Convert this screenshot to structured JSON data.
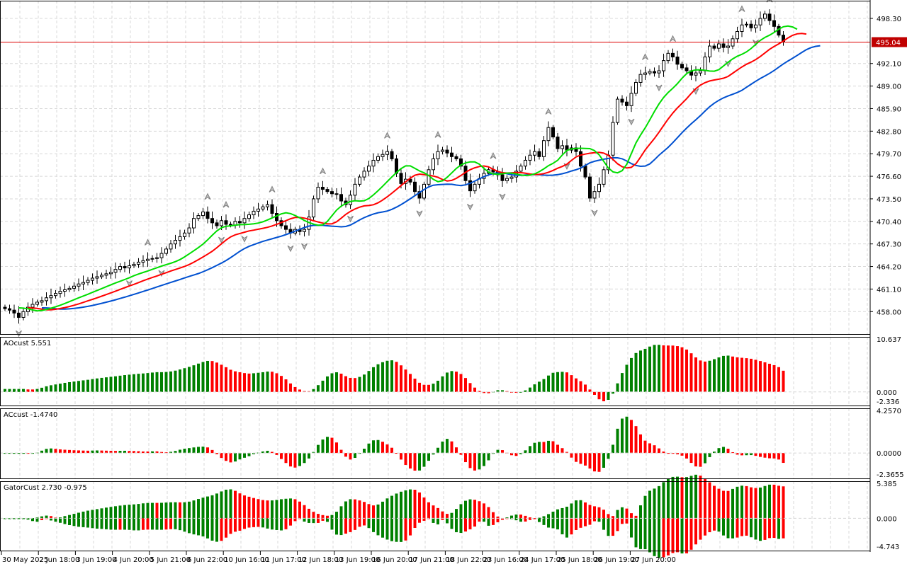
{
  "symbol_price_line": {
    "value": 495.04,
    "label": "495.04",
    "color": "#dd0000"
  },
  "colors": {
    "up": "#008000",
    "down": "#ff0000",
    "lips": "#00dd00",
    "teeth": "#ff0000",
    "jaw": "#0050d0",
    "grid": "#d8d8d8"
  },
  "chart_data": [
    {
      "type": "candlestick",
      "title": "",
      "price_ticks": [
        "498.30",
        "492.10",
        "489.00",
        "485.90",
        "482.80",
        "479.70",
        "476.60",
        "473.50",
        "470.40",
        "467.30",
        "464.20",
        "461.10",
        "458.00"
      ],
      "ylim": [
        456.7,
        500.6
      ],
      "time_ticks": [
        "30 May 2025",
        "2 Jun 18:00",
        "3 Jun 19:00",
        "4 Jun 20:00",
        "5 Jun 21:00",
        "6 Jun 22:00",
        "10 Jun 16:00",
        "11 Jun 17:00",
        "12 Jun 18:00",
        "13 Jun 19:00",
        "16 Jun 20:00",
        "17 Jun 21:00",
        "18 Jun 22:00",
        "23 Jun 16:00",
        "24 Jun 17:00",
        "25 Jun 18:00",
        "26 Jun 19:00",
        "27 Jun 20:00"
      ],
      "closes": [
        458.4,
        458.2,
        457.8,
        457.2,
        458.0,
        458.6,
        459.0,
        459.3,
        459.5,
        459.9,
        460.2,
        460.5,
        460.8,
        461.0,
        461.2,
        461.5,
        461.8,
        462.0,
        462.3,
        462.6,
        462.8,
        463.0,
        463.2,
        463.4,
        463.8,
        464.2,
        464.0,
        464.3,
        464.5,
        464.8,
        465.0,
        465.2,
        465.3,
        465.4,
        466.0,
        466.6,
        467.3,
        467.8,
        468.3,
        468.8,
        469.5,
        470.8,
        471.2,
        471.7,
        470.8,
        470.2,
        469.8,
        470.5,
        470.0,
        469.9,
        470.4,
        470.2,
        470.8,
        471.3,
        471.8,
        472.1,
        472.4,
        472.7,
        471.5,
        470.5,
        469.8,
        469.3,
        468.8,
        469.3,
        469.0,
        469.3,
        471.0,
        473.5,
        475.1,
        474.8,
        474.5,
        474.2,
        474.1,
        473.2,
        472.7,
        474.0,
        475.5,
        476.5,
        477.3,
        478.0,
        478.8,
        479.3,
        479.6,
        480.0,
        479.0,
        477.0,
        475.6,
        476.2,
        475.8,
        474.5,
        473.6,
        475.5,
        477.5,
        479.0,
        480.0,
        480.2,
        479.8,
        479.3,
        479.0,
        478.0,
        476.0,
        474.6,
        475.5,
        476.3,
        477.0,
        477.5,
        477.2,
        476.8,
        476.0,
        476.3,
        476.5,
        477.3,
        478.0,
        478.8,
        479.5,
        480.0,
        479.3,
        481.5,
        483.3,
        482.0,
        480.4,
        480.8,
        480.2,
        480.5,
        480.0,
        478.0,
        476.5,
        473.6,
        474.5,
        475.5,
        477.5,
        479.5,
        484.0,
        487.2,
        486.8,
        486.3,
        488.0,
        489.5,
        490.6,
        490.8,
        491.0,
        490.8,
        491.1,
        492.5,
        493.5,
        493.0,
        492.0,
        491.5,
        491.1,
        490.5,
        490.8,
        491.1,
        493.0,
        494.5,
        494.2,
        494.8,
        494.3,
        494.5,
        495.5,
        496.5,
        497.4,
        497.5,
        497.0,
        497.4,
        498.3,
        498.9,
        498.0,
        497.2,
        496.0,
        495.04
      ],
      "first_open": 458.6
    },
    {
      "type": "bar",
      "title": "AOcust 5.551",
      "ticks": [
        "10.637",
        "0.000",
        "-2.336"
      ],
      "ylim": [
        -2.336,
        10.637
      ]
    },
    {
      "type": "bar",
      "title": "ACcust -1.4740",
      "ticks": [
        "4.2570",
        "0.0000",
        "-2.3655"
      ],
      "ylim": [
        -2.3655,
        4.257
      ]
    },
    {
      "type": "bar",
      "title": "GatorCust 2.730 -0.975",
      "ticks": [
        "5.385",
        "0.000",
        "-4.743"
      ],
      "ylim": [
        -4.743,
        5.385
      ]
    }
  ]
}
